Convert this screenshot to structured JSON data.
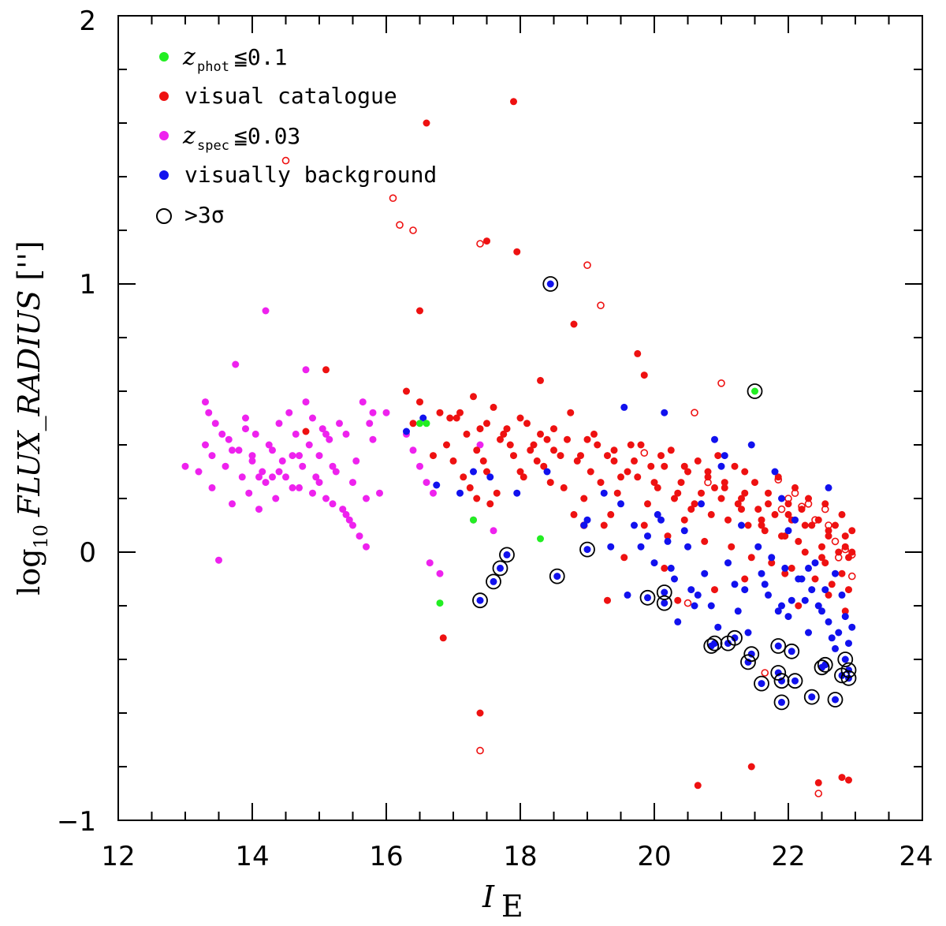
{
  "chart_data": {
    "type": "scatter",
    "xlabel": "I",
    "xlabel_sub": "E",
    "ylabel_prefix": "log",
    "ylabel_prefix_sub": "10",
    "ylabel_main": "FLUX_RADIUS",
    "ylabel_unit": "['']",
    "xlim": [
      12,
      24
    ],
    "ylim": [
      -1,
      2
    ],
    "x_ticks": [
      12,
      14,
      16,
      18,
      20,
      22,
      24
    ],
    "x_tick_labels": [
      "12",
      "14",
      "16",
      "18",
      "20",
      "22",
      "24"
    ],
    "y_ticks": [
      -1,
      0,
      1,
      2
    ],
    "y_tick_labels": [
      "−1",
      "0",
      "1",
      "2"
    ],
    "colors": {
      "photometric": "#22ee22",
      "visual": "#ee1111",
      "spectroscopic": "#ee22ee",
      "background": "#1111ee",
      "outline": "#000000"
    },
    "legend": {
      "position": "top-left",
      "entries": [
        {
          "key": "photometric",
          "var": "z",
          "sub": "phot",
          "text": "≦0.1"
        },
        {
          "key": "visual",
          "text": "visual catalogue"
        },
        {
          "key": "spectroscopic",
          "var": "z",
          "sub": "spec",
          "text": "≦0.03"
        },
        {
          "key": "background",
          "text": "visually background"
        },
        {
          "key": "outlier",
          "text": ">3σ"
        }
      ]
    },
    "series": [
      {
        "name": "zphot<=0.1",
        "key": "photometric",
        "x": [
          16.5,
          16.6,
          17.3,
          18.3,
          16.8,
          21.5
        ],
        "y": [
          0.48,
          0.48,
          0.12,
          0.05,
          -0.19,
          0.6
        ],
        "outlined": [
          false,
          false,
          false,
          false,
          false,
          true
        ]
      },
      {
        "name": "zspec<=0.03",
        "key": "spectroscopic",
        "x": [
          13.0,
          13.2,
          13.3,
          13.35,
          13.4,
          13.45,
          13.4,
          13.6,
          13.65,
          13.7,
          13.8,
          13.85,
          13.9,
          13.95,
          14.0,
          14.05,
          14.1,
          14.15,
          14.2,
          14.25,
          14.3,
          14.35,
          14.4,
          14.45,
          14.5,
          14.55,
          14.6,
          14.65,
          14.7,
          14.75,
          14.8,
          14.85,
          14.9,
          14.95,
          15.0,
          15.05,
          15.1,
          15.15,
          15.2,
          15.25,
          15.3,
          15.35,
          15.4,
          15.45,
          15.5,
          15.55,
          15.6,
          15.65,
          15.7,
          15.75,
          15.8,
          15.9,
          16.0,
          13.5,
          13.75,
          14.2,
          14.0,
          14.8,
          15.1,
          15.7,
          16.3,
          16.4,
          16.5,
          16.6,
          16.7,
          17.4,
          17.6,
          16.65,
          16.8,
          17.3,
          13.3,
          13.55,
          13.7,
          14.3,
          14.6,
          14.9,
          15.2,
          15.4,
          15.5,
          15.8,
          13.9,
          14.1,
          14.4,
          14.7,
          15.0
        ],
        "y": [
          0.32,
          0.3,
          0.4,
          0.52,
          0.36,
          0.48,
          0.24,
          0.32,
          0.42,
          0.18,
          0.38,
          0.28,
          0.5,
          0.22,
          0.34,
          0.44,
          0.16,
          0.3,
          0.26,
          0.4,
          0.38,
          0.2,
          0.48,
          0.34,
          0.28,
          0.52,
          0.36,
          0.44,
          0.24,
          0.32,
          0.56,
          0.4,
          0.5,
          0.28,
          0.36,
          0.46,
          0.2,
          0.42,
          0.32,
          0.3,
          0.48,
          0.16,
          0.44,
          0.12,
          0.26,
          0.34,
          0.06,
          0.56,
          0.02,
          0.48,
          0.52,
          0.22,
          0.52,
          -0.03,
          0.7,
          0.9,
          0.36,
          0.68,
          0.44,
          0.2,
          0.44,
          0.38,
          0.32,
          0.26,
          0.22,
          0.4,
          0.08,
          -0.04,
          -0.08,
          0.12,
          0.56,
          0.44,
          0.38,
          0.28,
          0.24,
          0.22,
          0.18,
          0.14,
          0.1,
          0.42,
          0.46,
          0.28,
          0.3,
          0.36,
          0.26
        ],
        "outlined": []
      },
      {
        "name": "visually background",
        "key": "background",
        "x": [
          16.3,
          16.55,
          16.75,
          17.1,
          17.3,
          17.55,
          17.95,
          18.4,
          18.95,
          19.0,
          19.25,
          19.35,
          19.5,
          19.55,
          19.7,
          19.9,
          20.0,
          20.1,
          20.15,
          20.2,
          20.3,
          20.45,
          20.55,
          20.7,
          20.85,
          20.9,
          21.05,
          21.2,
          21.3,
          21.45,
          21.6,
          21.7,
          21.8,
          21.9,
          22.0,
          22.15,
          22.25,
          22.35,
          22.5,
          22.6,
          22.7,
          22.75,
          22.8,
          22.85,
          22.9,
          20.05,
          20.25,
          20.5,
          20.65,
          20.95,
          21.1,
          21.25,
          21.55,
          21.65,
          21.75,
          21.95,
          22.05,
          22.2,
          22.3,
          22.45,
          22.55,
          22.65,
          22.95,
          19.6,
          19.8,
          20.35,
          20.6,
          20.75,
          21.35,
          21.85,
          22.1,
          22.4,
          21.0,
          21.4,
          21.9,
          22.0,
          22.3,
          22.6,
          22.7,
          18.45,
          19.0,
          17.4,
          17.6,
          17.7,
          17.8,
          18.55,
          19.9,
          20.15,
          20.15,
          20.85,
          20.9,
          21.1,
          21.2,
          21.4,
          21.45,
          21.6,
          21.85,
          21.85,
          21.9,
          21.9,
          22.05,
          22.1,
          22.35,
          22.5,
          22.55,
          22.7,
          22.8,
          22.85,
          22.9,
          22.9
        ],
        "y": [
          0.45,
          0.5,
          0.25,
          0.22,
          0.3,
          0.28,
          0.22,
          0.3,
          0.1,
          0.12,
          0.22,
          0.02,
          0.18,
          0.54,
          0.1,
          0.06,
          -0.04,
          0.12,
          0.52,
          0.04,
          -0.1,
          0.08,
          -0.14,
          0.18,
          -0.2,
          0.42,
          0.36,
          -0.12,
          0.1,
          0.4,
          -0.08,
          -0.16,
          0.3,
          -0.2,
          -0.24,
          -0.1,
          -0.18,
          -0.14,
          -0.22,
          -0.26,
          -0.08,
          -0.3,
          -0.16,
          -0.24,
          -0.34,
          0.14,
          -0.06,
          0.02,
          -0.16,
          -0.28,
          -0.04,
          -0.22,
          0.02,
          -0.12,
          -0.02,
          -0.06,
          -0.18,
          -0.1,
          -0.3,
          -0.2,
          -0.14,
          -0.32,
          -0.28,
          -0.16,
          0.02,
          -0.26,
          -0.2,
          -0.08,
          -0.14,
          -0.22,
          0.12,
          -0.04,
          0.32,
          -0.3,
          0.2,
          0.08,
          -0.06,
          0.24,
          -0.36,
          1.0,
          0.01,
          -0.18,
          -0.11,
          -0.06,
          -0.01,
          -0.09,
          -0.17,
          -0.15,
          -0.19,
          -0.35,
          -0.34,
          -0.34,
          -0.32,
          -0.41,
          -0.38,
          -0.49,
          -0.35,
          -0.45,
          -0.48,
          -0.56,
          -0.37,
          -0.48,
          -0.54,
          -0.43,
          -0.42,
          -0.55,
          -0.46,
          -0.4,
          -0.44,
          -0.47
        ],
        "outlined": []
      },
      {
        "name": "visual catalogue",
        "key": "visual",
        "x": [
          14.8,
          15.1,
          16.6,
          17.5,
          17.9,
          17.95,
          18.8,
          16.5,
          19.75,
          19.85,
          18.3,
          16.3,
          16.5,
          16.8,
          17.05,
          17.3,
          17.4,
          17.6,
          17.85,
          18.1,
          18.4,
          18.75,
          18.9,
          19.1,
          19.4,
          19.65,
          19.95,
          20.25,
          20.5,
          20.65,
          20.8,
          20.95,
          21.05,
          21.2,
          21.3,
          21.35,
          21.5,
          21.7,
          21.85,
          22.0,
          22.1,
          22.2,
          22.3,
          22.45,
          22.55,
          22.7,
          22.8,
          22.95,
          16.9,
          17.0,
          17.2,
          17.35,
          17.5,
          17.7,
          17.9,
          18.05,
          18.2,
          18.35,
          18.5,
          18.65,
          18.85,
          19.05,
          19.2,
          19.3,
          19.45,
          19.6,
          19.75,
          19.9,
          20.05,
          20.15,
          20.3,
          20.4,
          20.55,
          20.7,
          20.85,
          21.0,
          21.1,
          21.25,
          21.4,
          21.55,
          21.65,
          21.8,
          21.95,
          22.05,
          22.15,
          22.35,
          22.5,
          22.6,
          22.75,
          22.85,
          22.9,
          17.15,
          17.45,
          17.65,
          17.8,
          18.0,
          18.15,
          18.3,
          18.45,
          18.6,
          18.7,
          18.95,
          19.15,
          19.35,
          19.5,
          19.7,
          19.85,
          20.0,
          20.2,
          20.35,
          20.45,
          20.6,
          20.75,
          20.9,
          21.15,
          21.3,
          21.45,
          21.6,
          21.75,
          21.9,
          22.05,
          22.25,
          22.4,
          22.55,
          22.65,
          22.8,
          22.9,
          16.7,
          17.25,
          17.55,
          18.25,
          19.25,
          20.15,
          20.9,
          21.6,
          22.15,
          22.5,
          22.85,
          16.95,
          17.35,
          18.8,
          19.55,
          20.35,
          21.35,
          21.95,
          22.6,
          16.85,
          19.3,
          17.4,
          21.45,
          20.65,
          22.45,
          22.8,
          22.9,
          16.4,
          17.1,
          17.5,
          17.75,
          18.0,
          18.5,
          19.0,
          19.4,
          19.8,
          20.1,
          20.45,
          20.8,
          21.05,
          21.35,
          21.7,
          22.0,
          22.25,
          22.6,
          22.85,
          22.95
        ],
        "y": [
          0.45,
          0.68,
          1.6,
          1.16,
          1.68,
          1.12,
          0.85,
          0.9,
          0.74,
          0.66,
          0.64,
          0.6,
          0.56,
          0.52,
          0.5,
          0.58,
          0.46,
          0.54,
          0.4,
          0.48,
          0.42,
          0.52,
          0.36,
          0.44,
          0.34,
          0.4,
          0.32,
          0.38,
          0.3,
          0.34,
          0.28,
          0.36,
          0.24,
          0.32,
          0.2,
          0.3,
          0.26,
          0.22,
          0.28,
          0.18,
          0.24,
          0.16,
          0.2,
          0.12,
          0.18,
          0.1,
          0.14,
          0.08,
          0.4,
          0.34,
          0.44,
          0.38,
          0.3,
          0.42,
          0.36,
          0.28,
          0.4,
          0.32,
          0.38,
          0.24,
          0.34,
          0.3,
          0.26,
          0.36,
          0.22,
          0.3,
          0.28,
          0.18,
          0.24,
          0.32,
          0.2,
          0.26,
          0.16,
          0.22,
          0.14,
          0.2,
          0.12,
          0.18,
          0.1,
          0.16,
          0.08,
          0.14,
          0.06,
          0.12,
          0.04,
          0.1,
          0.02,
          0.08,
          0.0,
          0.06,
          -0.02,
          0.28,
          0.34,
          0.22,
          0.46,
          0.3,
          0.38,
          0.44,
          0.26,
          0.36,
          0.42,
          0.2,
          0.4,
          0.14,
          0.28,
          0.34,
          0.1,
          0.26,
          0.06,
          0.22,
          0.12,
          0.18,
          0.04,
          0.24,
          0.02,
          0.16,
          -0.02,
          0.1,
          -0.04,
          0.06,
          -0.06,
          0.0,
          -0.1,
          -0.04,
          -0.12,
          -0.08,
          -0.14,
          0.36,
          0.24,
          0.18,
          0.34,
          0.1,
          -0.06,
          -0.14,
          0.12,
          -0.2,
          -0.02,
          -0.22,
          0.5,
          0.2,
          0.14,
          -0.02,
          -0.18,
          -0.1,
          -0.08,
          -0.16,
          -0.32,
          -0.18,
          -0.6,
          -0.8,
          -0.87,
          -0.86,
          -0.84,
          -0.85,
          0.48,
          0.52,
          0.48,
          0.44,
          0.5,
          0.46,
          0.42,
          0.38,
          0.4,
          0.36,
          0.32,
          0.3,
          0.26,
          0.22,
          0.18,
          0.14,
          0.1,
          0.06,
          0.02,
          0.0
        ],
        "outlined": []
      },
      {
        "name": "visual catalogue (open)",
        "key": "visual-open",
        "x": [
          14.5,
          16.1,
          16.2,
          16.4,
          17.4,
          19.0,
          19.2,
          21.0,
          20.6,
          19.85,
          18.95,
          20.5,
          21.65,
          21.85,
          22.0,
          22.2,
          22.4,
          22.55,
          22.7,
          22.85,
          22.95,
          22.95,
          21.9,
          22.6,
          20.8,
          17.4,
          22.45,
          22.1,
          22.3,
          22.75
        ],
        "y": [
          1.46,
          1.32,
          1.22,
          1.2,
          1.15,
          1.07,
          0.92,
          0.63,
          0.52,
          0.37,
          0.1,
          -0.19,
          -0.45,
          0.27,
          0.2,
          0.17,
          0.12,
          0.16,
          0.04,
          0.01,
          -0.01,
          -0.09,
          0.16,
          0.1,
          0.26,
          -0.74,
          -0.9,
          0.22,
          0.18,
          -0.02
        ],
        "outlined": []
      }
    ]
  }
}
